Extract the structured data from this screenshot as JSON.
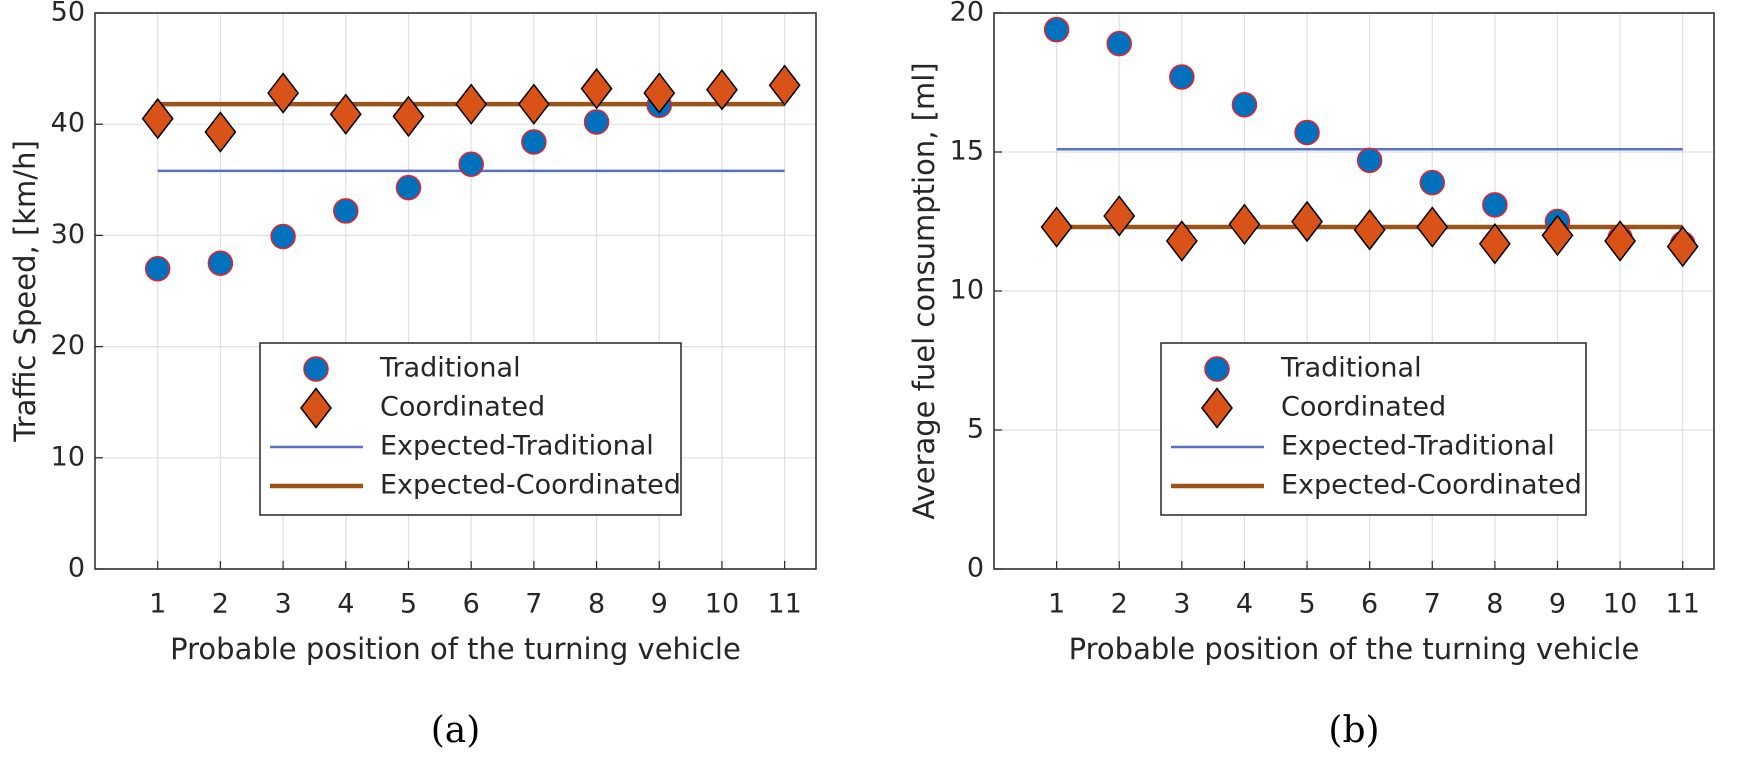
{
  "chart_data": [
    {
      "type": "scatter",
      "caption": "(a)",
      "xlabel": "Probable position of the turning vehicle",
      "ylabel": "Traffic Speed, [km/h]",
      "x": [
        1,
        2,
        3,
        4,
        5,
        6,
        7,
        8,
        9,
        10,
        11
      ],
      "xlim": [
        0,
        11.5
      ],
      "xticks": [
        1,
        2,
        3,
        4,
        5,
        6,
        7,
        8,
        9,
        10,
        11
      ],
      "ylim": [
        0,
        50
      ],
      "yticks": [
        0,
        10,
        20,
        30,
        40,
        50
      ],
      "grid": true,
      "legend": "south",
      "series": [
        {
          "name": "Traditional",
          "marker": "circle",
          "color": "#0072bd",
          "edge": "#e8202a",
          "values": [
            27,
            27.5,
            29.9,
            32.2,
            34.3,
            36.4,
            38.4,
            40.2,
            41.7,
            43.1,
            43.5
          ]
        },
        {
          "name": "Coordinated",
          "marker": "diamond",
          "color": "#d95319",
          "edge": "#000000",
          "values": [
            40.5,
            39.3,
            42.8,
            40.9,
            40.7,
            41.8,
            41.8,
            43.2,
            42.8,
            43.1,
            43.5
          ]
        },
        {
          "name": "Expected-Traditional",
          "marker": "line",
          "color": "#5b6fc6",
          "x": [
            1,
            11
          ],
          "values": [
            35.8,
            35.8
          ]
        },
        {
          "name": "Expected-Coordinated",
          "marker": "line",
          "color": "#9a5418",
          "x": [
            1,
            11
          ],
          "values": [
            41.8,
            41.8
          ]
        }
      ]
    },
    {
      "type": "scatter",
      "caption": "(b)",
      "xlabel": "Probable position of the turning vehicle",
      "ylabel": "Average fuel consumption, [ml]",
      "x": [
        1,
        2,
        3,
        4,
        5,
        6,
        7,
        8,
        9,
        10,
        11
      ],
      "xlim": [
        0,
        11.5
      ],
      "xticks": [
        1,
        2,
        3,
        4,
        5,
        6,
        7,
        8,
        9,
        10,
        11
      ],
      "ylim": [
        0,
        20
      ],
      "yticks": [
        0,
        5,
        10,
        15,
        20
      ],
      "grid": true,
      "legend": "south",
      "series": [
        {
          "name": "Traditional",
          "marker": "circle",
          "color": "#0072bd",
          "edge": "#e8202a",
          "values": [
            19.4,
            18.9,
            17.7,
            16.7,
            15.7,
            14.7,
            13.9,
            13.1,
            12.5,
            11.9,
            11.7
          ]
        },
        {
          "name": "Coordinated",
          "marker": "diamond",
          "color": "#d95319",
          "edge": "#000000",
          "values": [
            12.3,
            12.7,
            11.8,
            12.4,
            12.5,
            12.2,
            12.3,
            11.7,
            12.0,
            11.8,
            11.6
          ]
        },
        {
          "name": "Expected-Traditional",
          "marker": "line",
          "color": "#5b6fc6",
          "x": [
            1,
            11
          ],
          "values": [
            15.1,
            15.1
          ]
        },
        {
          "name": "Expected-Coordinated",
          "marker": "line",
          "color": "#9a5418",
          "x": [
            1,
            11
          ],
          "values": [
            12.3,
            12.3
          ]
        }
      ]
    }
  ]
}
